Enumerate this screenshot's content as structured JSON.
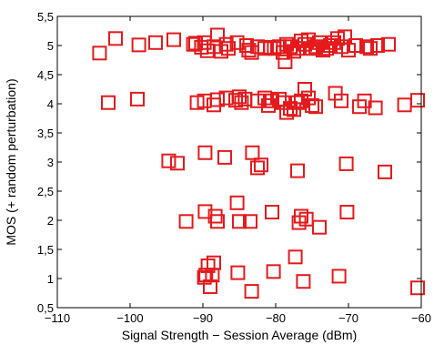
{
  "chart_data": {
    "type": "scatter",
    "xlabel": "Signal Strength − Session Average (dBm)",
    "ylabel": "MOS (+ random perturbation)",
    "xlim": [
      -110,
      -60
    ],
    "ylim": [
      0.5,
      5.5
    ],
    "x_ticks": [
      -110,
      -100,
      -90,
      -80,
      -70,
      -60
    ],
    "x_tick_labels": [
      "−110",
      "−100",
      "−90",
      "−80",
      "−70",
      "−60"
    ],
    "y_ticks": [
      0.5,
      1,
      1.5,
      2,
      2.5,
      3,
      3.5,
      4,
      4.5,
      5,
      5.5
    ],
    "y_tick_labels": [
      "0,5",
      "1",
      "1,5",
      "2",
      "2,5",
      "3",
      "3,5",
      "4",
      "4,5",
      "5",
      "5,5"
    ],
    "grid": false,
    "marker": "square",
    "color": "#e41a1c",
    "series": [
      {
        "points": [
          [
            -104.2,
            4.87
          ],
          [
            -102.0,
            5.12
          ],
          [
            -98.8,
            5.01
          ],
          [
            -96.5,
            5.05
          ],
          [
            -94.0,
            5.1
          ],
          [
            -91.3,
            5.02
          ],
          [
            -91.0,
            5.04
          ],
          [
            -90.2,
            4.97
          ],
          [
            -89.8,
            5.05
          ],
          [
            -89.4,
            4.91
          ],
          [
            -88.5,
            4.98
          ],
          [
            -88.0,
            5.18
          ],
          [
            -87.5,
            4.9
          ],
          [
            -86.8,
            5.02
          ],
          [
            -86.5,
            4.95
          ],
          [
            -85.3,
            5.05
          ],
          [
            -84.0,
            5.0
          ],
          [
            -83.7,
            4.92
          ],
          [
            -83.3,
            4.88
          ],
          [
            -82.5,
            4.98
          ],
          [
            -81.5,
            4.95
          ],
          [
            -80.7,
            4.97
          ],
          [
            -80.2,
            4.95
          ],
          [
            -79.5,
            4.98
          ],
          [
            -79.0,
            4.88
          ],
          [
            -78.7,
            4.72
          ],
          [
            -78.5,
            5.02
          ],
          [
            -78.0,
            4.98
          ],
          [
            -77.5,
            4.9
          ],
          [
            -77.0,
            4.95
          ],
          [
            -76.5,
            5.08
          ],
          [
            -76.0,
            5.02
          ],
          [
            -75.5,
            5.1
          ],
          [
            -75.0,
            4.95
          ],
          [
            -74.5,
            4.98
          ],
          [
            -74.0,
            5.05
          ],
          [
            -73.5,
            4.92
          ],
          [
            -73.0,
            4.95
          ],
          [
            -72.5,
            5.0
          ],
          [
            -72.0,
            5.05
          ],
          [
            -71.5,
            5.12
          ],
          [
            -71.0,
            4.98
          ],
          [
            -70.5,
            5.15
          ],
          [
            -70.0,
            4.92
          ],
          [
            -69.0,
            5.0
          ],
          [
            -67.5,
            4.98
          ],
          [
            -67.0,
            4.95
          ],
          [
            -66.0,
            5.0
          ],
          [
            -64.5,
            5.02
          ],
          [
            -103.0,
            4.02
          ],
          [
            -99.0,
            4.08
          ],
          [
            -90.8,
            4.02
          ],
          [
            -89.8,
            4.05
          ],
          [
            -88.5,
            3.98
          ],
          [
            -88.0,
            4.07
          ],
          [
            -86.8,
            4.1
          ],
          [
            -85.5,
            4.06
          ],
          [
            -85.0,
            4.12
          ],
          [
            -84.7,
            4.02
          ],
          [
            -84.2,
            4.08
          ],
          [
            -82.5,
            4.05
          ],
          [
            -81.5,
            4.1
          ],
          [
            -81.0,
            3.97
          ],
          [
            -80.5,
            4.05
          ],
          [
            -79.5,
            4.08
          ],
          [
            -79.0,
            4.02
          ],
          [
            -78.5,
            3.85
          ],
          [
            -78.0,
            3.92
          ],
          [
            -77.5,
            3.9
          ],
          [
            -77.0,
            4.02
          ],
          [
            -76.5,
            4.05
          ],
          [
            -76.0,
            4.25
          ],
          [
            -75.5,
            4.1
          ],
          [
            -75.0,
            3.97
          ],
          [
            -74.5,
            3.95
          ],
          [
            -71.8,
            4.18
          ],
          [
            -71.0,
            4.05
          ],
          [
            -68.5,
            3.95
          ],
          [
            -67.8,
            4.05
          ],
          [
            -66.3,
            3.93
          ],
          [
            -62.3,
            3.98
          ],
          [
            -60.5,
            4.06
          ],
          [
            -94.7,
            3.02
          ],
          [
            -93.5,
            2.98
          ],
          [
            -89.7,
            3.16
          ],
          [
            -87.0,
            3.08
          ],
          [
            -83.2,
            3.16
          ],
          [
            -82.5,
            2.9
          ],
          [
            -82.0,
            2.95
          ],
          [
            -77.0,
            2.85
          ],
          [
            -70.3,
            2.97
          ],
          [
            -65.0,
            2.83
          ],
          [
            -92.3,
            1.98
          ],
          [
            -89.7,
            2.15
          ],
          [
            -88.3,
            2.07
          ],
          [
            -88.0,
            1.98
          ],
          [
            -85.3,
            2.3
          ],
          [
            -85.0,
            1.98
          ],
          [
            -83.5,
            1.98
          ],
          [
            -80.5,
            2.14
          ],
          [
            -76.8,
            1.96
          ],
          [
            -76.5,
            2.07
          ],
          [
            -75.8,
            2.02
          ],
          [
            -74.0,
            1.88
          ],
          [
            -70.2,
            2.14
          ],
          [
            -89.8,
            1.02
          ],
          [
            -89.6,
            1.06
          ],
          [
            -89.3,
            1.22
          ],
          [
            -89.0,
            0.86
          ],
          [
            -88.7,
            1.06
          ],
          [
            -88.5,
            1.27
          ],
          [
            -85.2,
            1.1
          ],
          [
            -83.3,
            0.78
          ],
          [
            -80.3,
            1.12
          ],
          [
            -77.3,
            1.37
          ],
          [
            -76.2,
            0.95
          ],
          [
            -71.3,
            1.04
          ],
          [
            -60.5,
            0.84
          ]
        ]
      }
    ]
  }
}
